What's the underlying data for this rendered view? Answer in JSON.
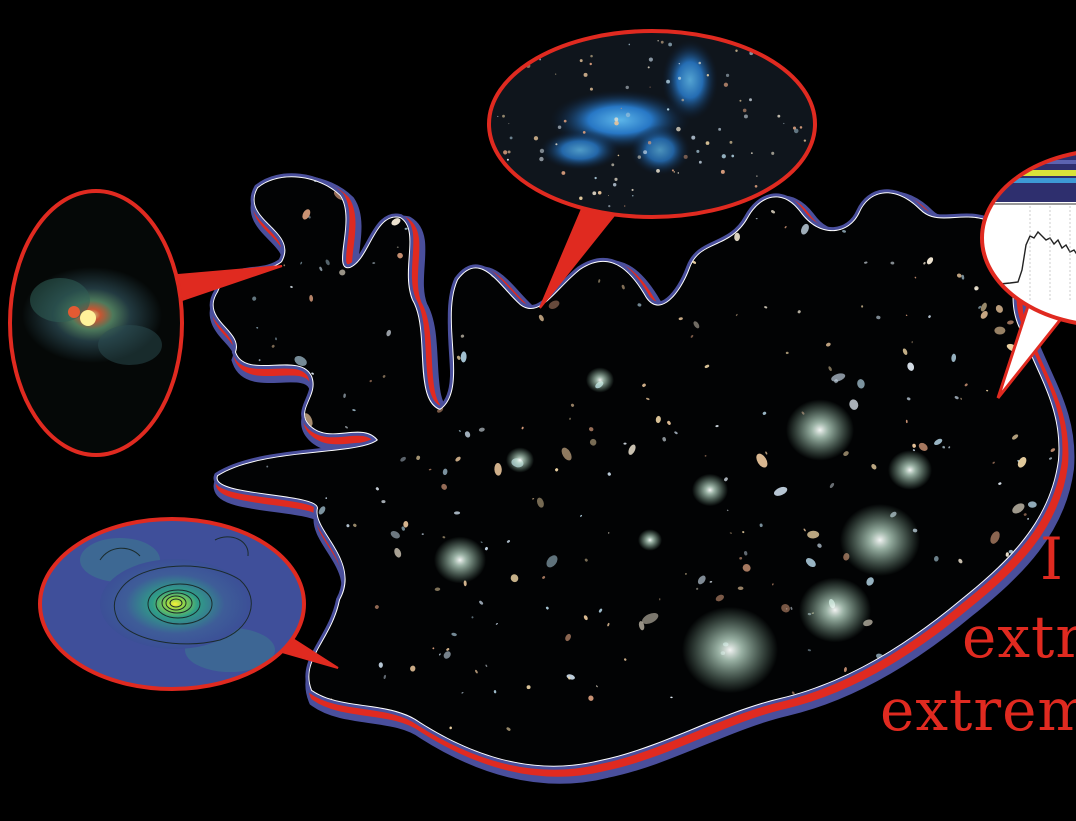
{
  "caption": {
    "lines": [
      "I",
      "extr",
      "extrem"
    ]
  },
  "colors": {
    "background": "#000000",
    "outline_outer": "#4a4f9c",
    "outline_inner": "#e02a20",
    "bubble_border": "#e02a20",
    "caption_text": "#e02a20"
  },
  "bubbles": [
    {
      "icon": "red-galaxy-thumbnail-icon"
    },
    {
      "icon": "blue-protocluster-thumbnail-icon"
    },
    {
      "icon": "spectrum-plot-thumbnail-icon"
    },
    {
      "icon": "contour-map-thumbnail-icon"
    }
  ]
}
